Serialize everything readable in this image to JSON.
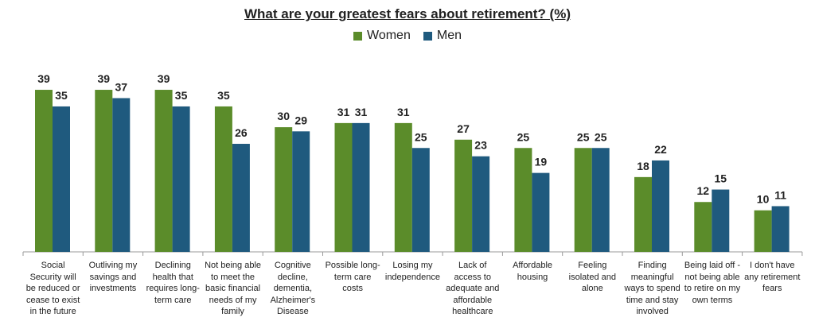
{
  "chart_data": {
    "type": "bar",
    "title": "What are your greatest fears about retirement? (%)",
    "categories": [
      "Social Security will be reduced or cease to exist in the future",
      "Outliving my savings and investments",
      "Declining health that requires long-term care",
      "Not being able to meet the basic financial needs of my family",
      "Cognitive decline, dementia, Alzheimer's Disease",
      "Possible long-term care costs",
      "Losing my independence",
      "Lack of access to adequate and affordable healthcare",
      "Affordable housing",
      "Feeling isolated and alone",
      "Finding meaningful ways to spend time and stay involved",
      "Being laid off - not being able to retire on my own terms",
      "I don't have any retirement fears"
    ],
    "series": [
      {
        "name": "Women",
        "color": "#5b8c2a",
        "values": [
          39,
          39,
          39,
          35,
          30,
          31,
          31,
          27,
          25,
          25,
          18,
          12,
          10
        ]
      },
      {
        "name": "Men",
        "color": "#1f5a7e",
        "values": [
          35,
          37,
          35,
          26,
          29,
          31,
          25,
          23,
          19,
          25,
          22,
          15,
          11
        ]
      }
    ],
    "ylim": [
      0,
      40
    ],
    "grid": false,
    "legend_position": "top-center",
    "data_labels": true
  }
}
